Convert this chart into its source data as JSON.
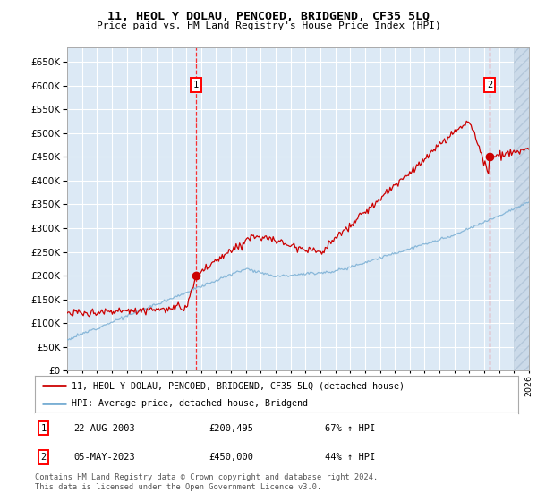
{
  "title": "11, HEOL Y DOLAU, PENCOED, BRIDGEND, CF35 5LQ",
  "subtitle": "Price paid vs. HM Land Registry's House Price Index (HPI)",
  "ylim": [
    0,
    680000
  ],
  "yticks": [
    0,
    50000,
    100000,
    150000,
    200000,
    250000,
    300000,
    350000,
    400000,
    450000,
    500000,
    550000,
    600000,
    650000
  ],
  "background_color": "#dce9f5",
  "transaction1": {
    "date_num": 2003.65,
    "price": 200495,
    "label": "1"
  },
  "transaction2": {
    "date_num": 2023.35,
    "price": 450000,
    "label": "2"
  },
  "legend_line1": "11, HEOL Y DOLAU, PENCOED, BRIDGEND, CF35 5LQ (detached house)",
  "legend_line2": "HPI: Average price, detached house, Bridgend",
  "annotation1_date": "22-AUG-2003",
  "annotation1_price": "£200,495",
  "annotation1_hpi": "67% ↑ HPI",
  "annotation2_date": "05-MAY-2023",
  "annotation2_price": "£450,000",
  "annotation2_hpi": "44% ↑ HPI",
  "footer": "Contains HM Land Registry data © Crown copyright and database right 2024.\nThis data is licensed under the Open Government Licence v3.0.",
  "line_color_red": "#cc0000",
  "line_color_blue": "#7aafd4",
  "xmin": 1995,
  "xmax": 2026
}
